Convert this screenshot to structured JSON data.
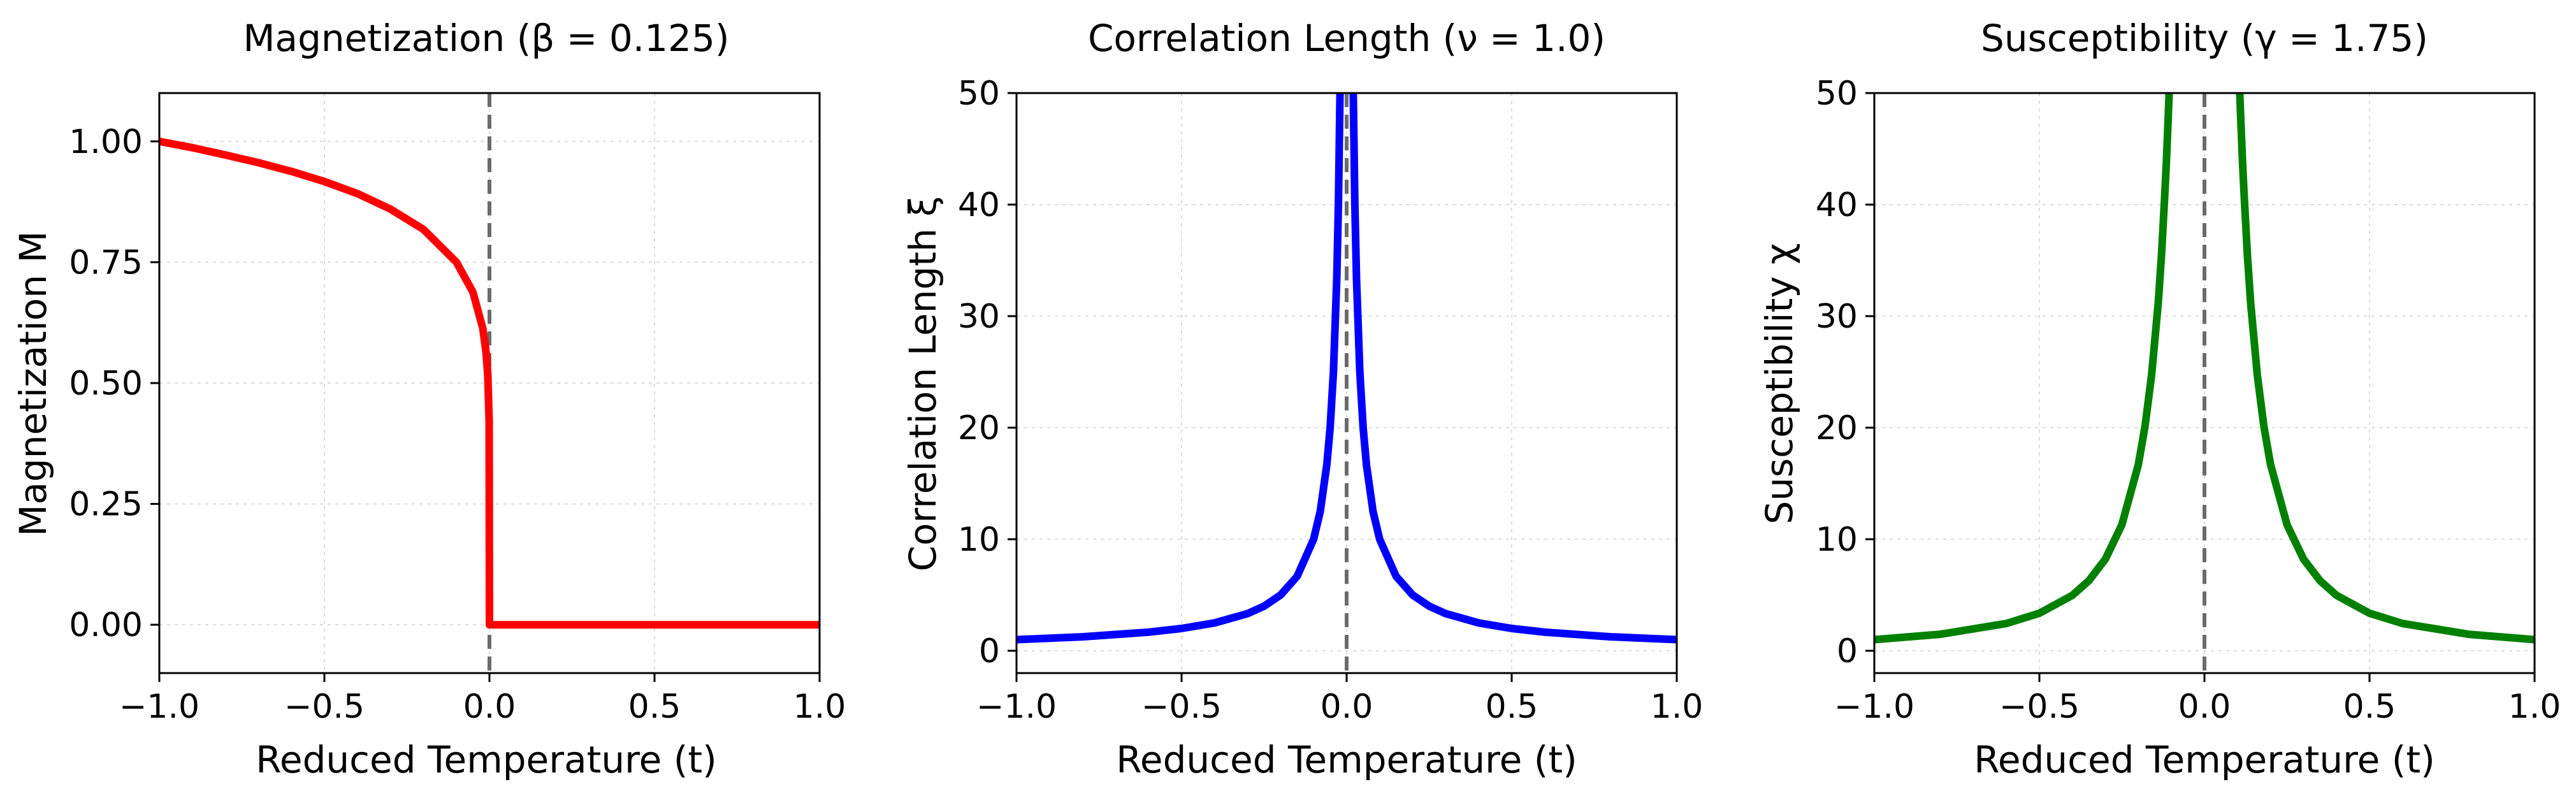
{
  "chart_data": [
    {
      "type": "line",
      "title": "Magnetization (β = 0.125)",
      "xlabel": "Reduced Temperature (t)",
      "ylabel": "Magnetization M",
      "xlim": [
        -1.0,
        1.0
      ],
      "ylim": [
        -0.1,
        1.1
      ],
      "xticks": [
        -1.0,
        -0.5,
        0.0,
        0.5,
        1.0
      ],
      "xtick_labels": [
        "−1.0",
        "−0.5",
        "0.0",
        "0.5",
        "1.0"
      ],
      "yticks": [
        0.0,
        0.25,
        0.5,
        0.75,
        1.0
      ],
      "ytick_labels": [
        "0.00",
        "0.25",
        "0.50",
        "0.75",
        "1.00"
      ],
      "grid": true,
      "critical_line_x": 0.0,
      "series": [
        {
          "color": "#ff0000",
          "x": [
            -1.0,
            -0.9,
            -0.8,
            -0.7,
            -0.6,
            -0.5,
            -0.4,
            -0.3,
            -0.2,
            -0.1,
            -0.05,
            -0.02,
            -0.01,
            -0.005,
            -0.001,
            0.0,
            0.0,
            0.25,
            0.5,
            0.75,
            1.0
          ],
          "y": [
            1.0,
            0.987,
            0.972,
            0.956,
            0.938,
            0.917,
            0.892,
            0.86,
            0.818,
            0.75,
            0.688,
            0.613,
            0.562,
            0.516,
            0.422,
            0.0,
            0.0,
            0.0,
            0.0,
            0.0,
            0.0
          ]
        }
      ]
    },
    {
      "type": "line",
      "title": "Correlation Length (ν = 1.0)",
      "xlabel": "Reduced Temperature (t)",
      "ylabel": "Correlation Length ξ",
      "xlim": [
        -1.0,
        1.0
      ],
      "ylim": [
        -2,
        50
      ],
      "xticks": [
        -1.0,
        -0.5,
        0.0,
        0.5,
        1.0
      ],
      "xtick_labels": [
        "−1.0",
        "−0.5",
        "0.0",
        "0.5",
        "1.0"
      ],
      "yticks": [
        0,
        10,
        20,
        30,
        40,
        50
      ],
      "ytick_labels": [
        "0",
        "10",
        "20",
        "30",
        "40",
        "50"
      ],
      "grid": true,
      "critical_line_x": 0.0,
      "series": [
        {
          "color": "#0000ff",
          "x": [
            -1.0,
            -0.8,
            -0.6,
            -0.5,
            -0.4,
            -0.3,
            -0.25,
            -0.2,
            -0.15,
            -0.1,
            -0.08,
            -0.06,
            -0.05,
            -0.04,
            -0.03,
            -0.025,
            -0.02
          ],
          "y": [
            1.0,
            1.25,
            1.667,
            2.0,
            2.5,
            3.333,
            4.0,
            5.0,
            6.667,
            10.0,
            12.5,
            16.667,
            20.0,
            25.0,
            33.333,
            40.0,
            50.0
          ]
        },
        {
          "color": "#0000ff",
          "x": [
            0.02,
            0.025,
            0.03,
            0.04,
            0.05,
            0.06,
            0.08,
            0.1,
            0.15,
            0.2,
            0.25,
            0.3,
            0.4,
            0.5,
            0.6,
            0.8,
            1.0
          ],
          "y": [
            50.0,
            40.0,
            33.333,
            25.0,
            20.0,
            16.667,
            12.5,
            10.0,
            6.667,
            5.0,
            4.0,
            3.333,
            2.5,
            2.0,
            1.667,
            1.25,
            1.0
          ]
        }
      ]
    },
    {
      "type": "line",
      "title": "Susceptibility (γ = 1.75)",
      "xlabel": "Reduced Temperature (t)",
      "ylabel": "Susceptibility χ",
      "xlim": [
        -1.0,
        1.0
      ],
      "ylim": [
        -2,
        50
      ],
      "xticks": [
        -1.0,
        -0.5,
        0.0,
        0.5,
        1.0
      ],
      "xtick_labels": [
        "−1.0",
        "−0.5",
        "0.0",
        "0.5",
        "1.0"
      ],
      "yticks": [
        0,
        10,
        20,
        30,
        40,
        50
      ],
      "ytick_labels": [
        "0",
        "10",
        "20",
        "30",
        "40",
        "50"
      ],
      "grid": true,
      "critical_line_x": 0.0,
      "series": [
        {
          "color": "#008000",
          "x": [
            -1.0,
            -0.8,
            -0.6,
            -0.5,
            -0.4,
            -0.35,
            -0.3,
            -0.25,
            -0.2,
            -0.18,
            -0.16,
            -0.14,
            -0.13,
            -0.12,
            -0.115,
            -0.11,
            -0.107
          ],
          "y": [
            1.0,
            1.478,
            2.447,
            3.364,
            4.973,
            6.283,
            8.22,
            11.31,
            16.72,
            20.14,
            24.74,
            31.18,
            35.56,
            40.93,
            44.0,
            47.63,
            50.0
          ]
        },
        {
          "color": "#008000",
          "x": [
            0.107,
            0.11,
            0.115,
            0.12,
            0.13,
            0.14,
            0.16,
            0.18,
            0.2,
            0.25,
            0.3,
            0.35,
            0.4,
            0.5,
            0.6,
            0.8,
            1.0
          ],
          "y": [
            50.0,
            47.63,
            44.0,
            40.93,
            35.56,
            31.18,
            24.74,
            20.14,
            16.72,
            11.31,
            8.22,
            6.283,
            4.973,
            3.364,
            2.447,
            1.478,
            1.0
          ]
        }
      ]
    }
  ]
}
